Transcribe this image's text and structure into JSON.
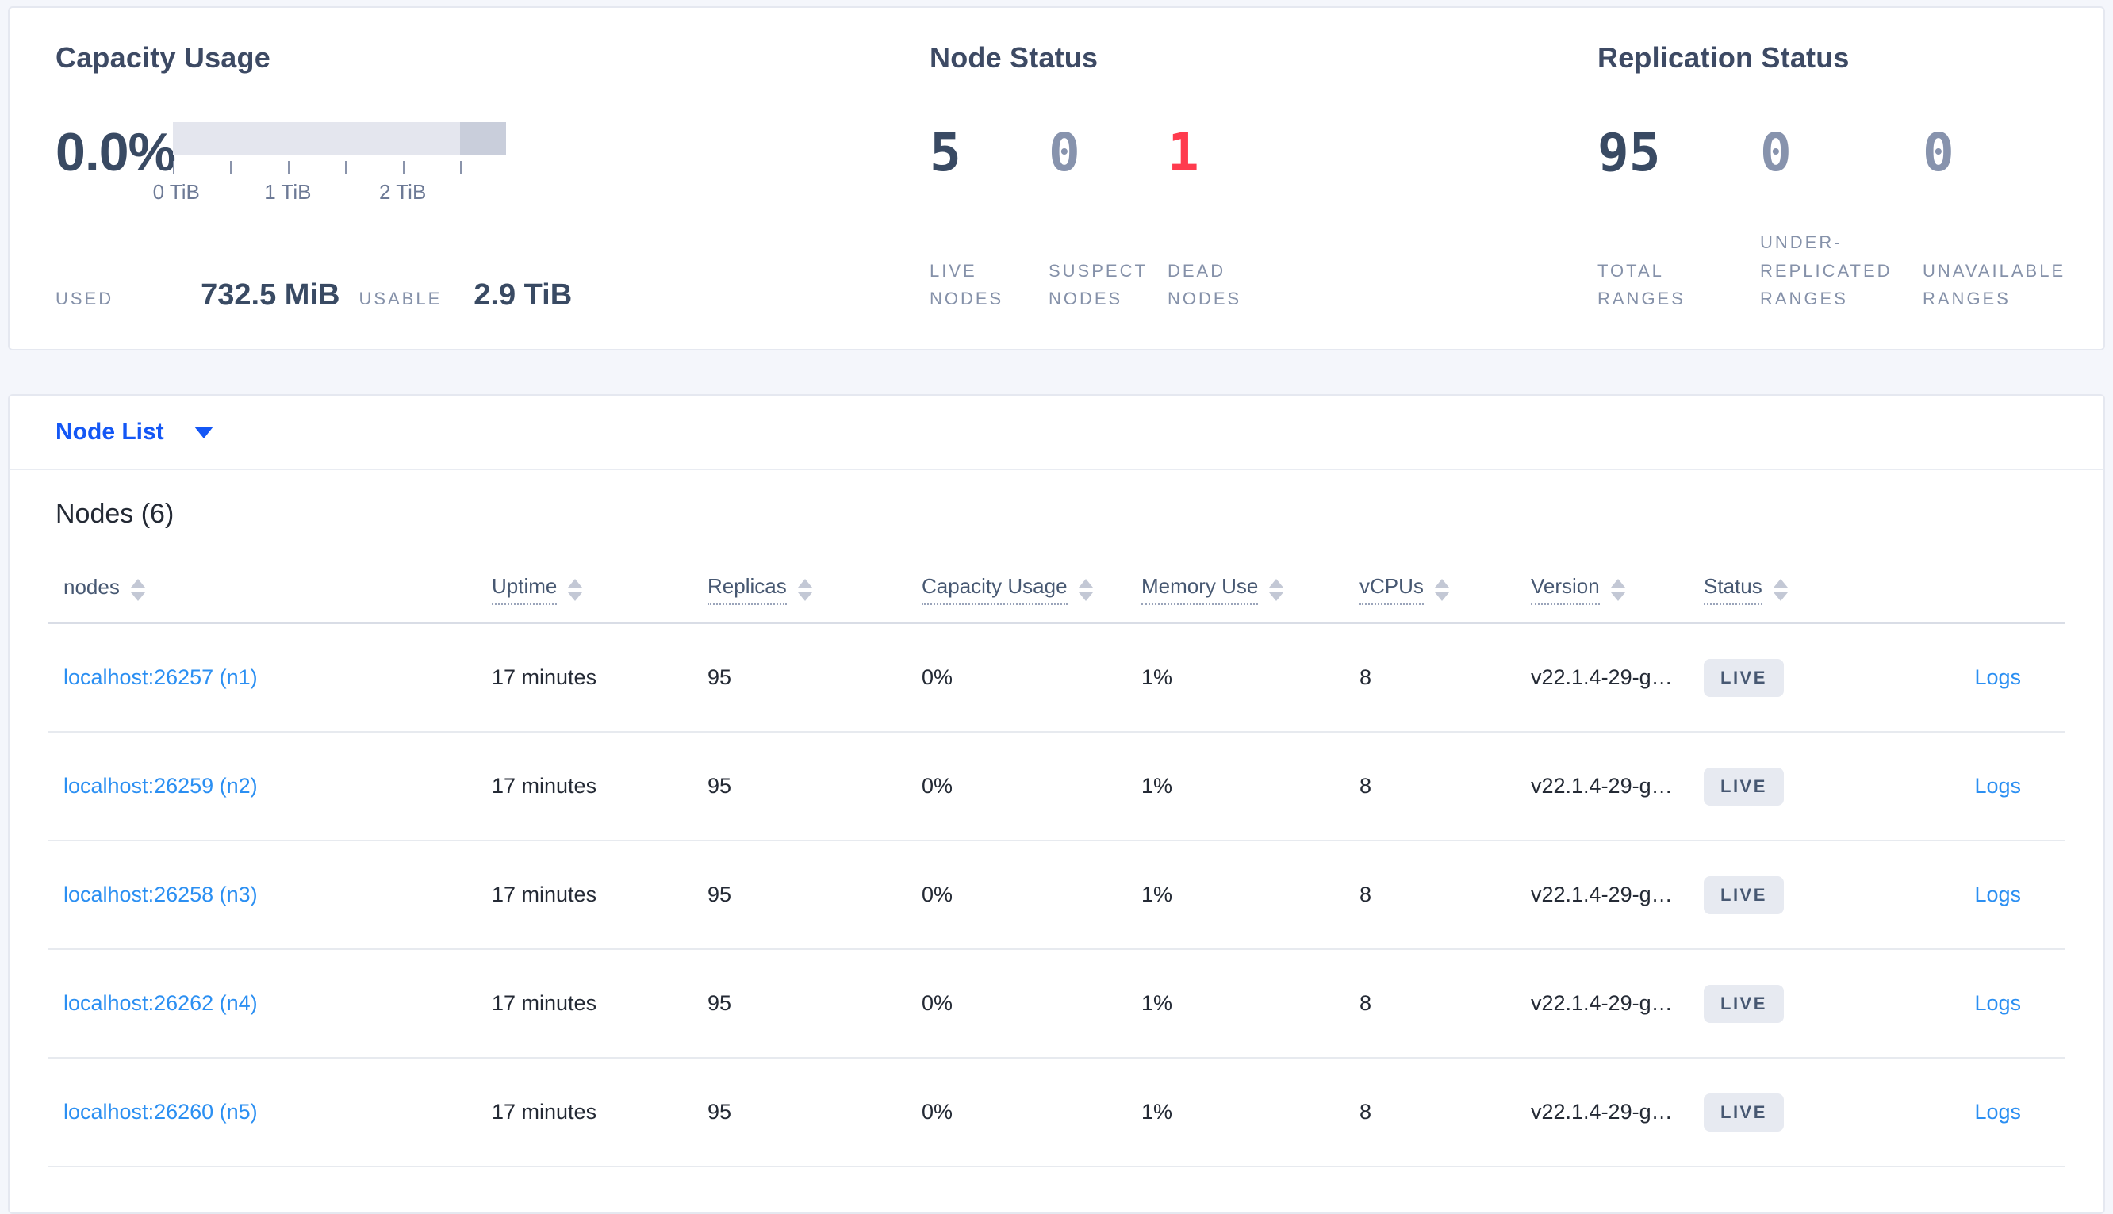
{
  "summary": {
    "capacity": {
      "title": "Capacity Usage",
      "percent": "0.0%",
      "used_label": "USED",
      "used_value": "732.5 MiB",
      "usable_label": "USABLE",
      "usable_value": "2.9 TiB",
      "axis_ticks": [
        "0 TiB",
        "1 TiB",
        "2 TiB"
      ],
      "bar_colors": {
        "available": "#e4e6ee",
        "reserved": "#c9cedb"
      }
    },
    "node_status": {
      "title": "Node Status",
      "stats": [
        {
          "value": "5",
          "label": "LIVE NODES",
          "color": "#394a63"
        },
        {
          "value": "0",
          "label": "SUSPECT NODES",
          "color": "#8793ad"
        },
        {
          "value": "1",
          "label": "DEAD NODES",
          "color": "#ff3b4e"
        }
      ]
    },
    "replication_status": {
      "title": "Replication Status",
      "stats": [
        {
          "value": "95",
          "label": "TOTAL RANGES",
          "color": "#394a63"
        },
        {
          "value": "0",
          "label": "UNDER-REPLICATED RANGES",
          "color": "#8793ad"
        },
        {
          "value": "0",
          "label": "UNAVAILABLE RANGES",
          "color": "#8793ad"
        }
      ]
    }
  },
  "view_selector": {
    "label": "Node List"
  },
  "table": {
    "title": "Nodes (6)",
    "columns": [
      {
        "label": "nodes",
        "tooltip": false
      },
      {
        "label": "Uptime",
        "tooltip": true
      },
      {
        "label": "Replicas",
        "tooltip": true
      },
      {
        "label": "Capacity Usage",
        "tooltip": true
      },
      {
        "label": "Memory Use",
        "tooltip": true
      },
      {
        "label": "vCPUs",
        "tooltip": true
      },
      {
        "label": "Version",
        "tooltip": true
      },
      {
        "label": "Status",
        "tooltip": true
      }
    ],
    "rows": [
      {
        "node": "localhost:26257 (n1)",
        "uptime": "17 minutes",
        "replicas": "95",
        "capacity_usage": "0%",
        "memory_use": "1%",
        "vcpus": "8",
        "version": "v22.1.4-29-g…",
        "status": "LIVE",
        "logs": "Logs"
      },
      {
        "node": "localhost:26259 (n2)",
        "uptime": "17 minutes",
        "replicas": "95",
        "capacity_usage": "0%",
        "memory_use": "1%",
        "vcpus": "8",
        "version": "v22.1.4-29-g…",
        "status": "LIVE",
        "logs": "Logs"
      },
      {
        "node": "localhost:26258 (n3)",
        "uptime": "17 minutes",
        "replicas": "95",
        "capacity_usage": "0%",
        "memory_use": "1%",
        "vcpus": "8",
        "version": "v22.1.4-29-g…",
        "status": "LIVE",
        "logs": "Logs"
      },
      {
        "node": "localhost:26262 (n4)",
        "uptime": "17 minutes",
        "replicas": "95",
        "capacity_usage": "0%",
        "memory_use": "1%",
        "vcpus": "8",
        "version": "v22.1.4-29-g…",
        "status": "LIVE",
        "logs": "Logs"
      },
      {
        "node": "localhost:26260 (n5)",
        "uptime": "17 minutes",
        "replicas": "95",
        "capacity_usage": "0%",
        "memory_use": "1%",
        "vcpus": "8",
        "version": "v22.1.4-29-g…",
        "status": "LIVE",
        "logs": "Logs"
      }
    ]
  }
}
